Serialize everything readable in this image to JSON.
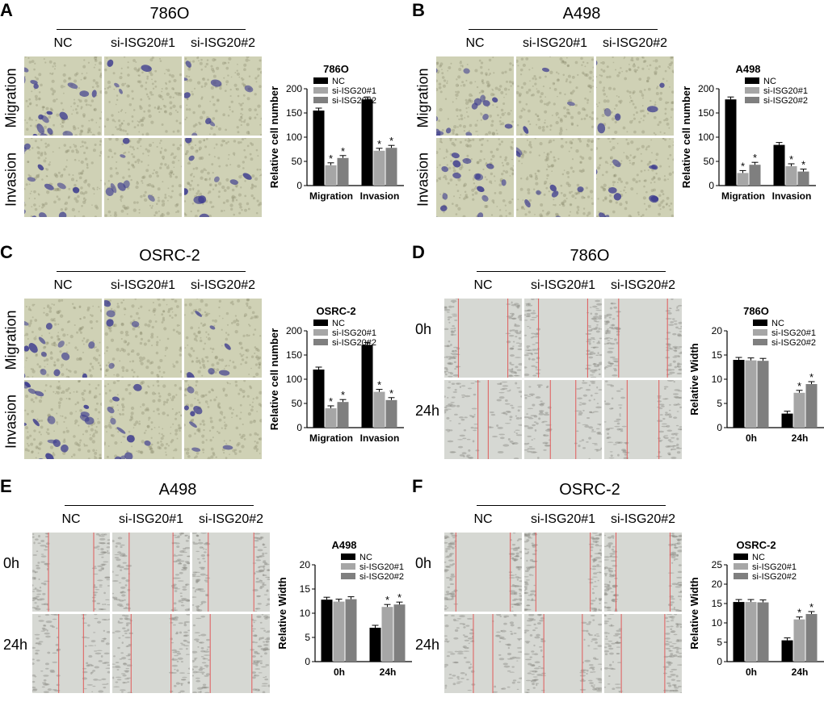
{
  "colors": {
    "nc": "#000000",
    "si1": "#a6a6a6",
    "si2": "#7f7f7f",
    "stain_bg": "#cfd1b5",
    "stain_cell": "#3e3d8f",
    "scratch_bg": "#d6d8d3",
    "scratch_line": "#e05a5a"
  },
  "columns": [
    "NC",
    "si-ISG20#1",
    "si-ISG20#2"
  ],
  "panels": [
    {
      "letter": "A",
      "cell_line": "786O",
      "kind": "transwell",
      "rows": [
        "Migration",
        "Invasion"
      ],
      "chart_data": {
        "type": "bar",
        "title": "786O",
        "ylabel": "Relative cell number",
        "xlabel": "",
        "categories": [
          "Migration",
          "Invasion"
        ],
        "ylim": [
          0,
          200
        ],
        "yticks": [
          0,
          50,
          100,
          150,
          200
        ],
        "series": [
          {
            "name": "NC",
            "values": [
              155,
              178
            ]
          },
          {
            "name": "si-ISG20#1",
            "values": [
              42,
              72
            ]
          },
          {
            "name": "si-ISG20#2",
            "values": [
              57,
              78
            ]
          }
        ],
        "significance": [
          [
            false,
            true,
            true
          ],
          [
            false,
            true,
            true
          ]
        ],
        "significance_mark": "*",
        "legend": "top-left"
      }
    },
    {
      "letter": "B",
      "cell_line": "A498",
      "kind": "transwell",
      "rows": [
        "Migration",
        "Invasion"
      ],
      "chart_data": {
        "type": "bar",
        "title": "A498",
        "ylabel": "Relative cell number",
        "xlabel": "",
        "categories": [
          "Migration",
          "Invasion"
        ],
        "ylim": [
          0,
          200
        ],
        "yticks": [
          0,
          50,
          100,
          150,
          200
        ],
        "series": [
          {
            "name": "NC",
            "values": [
              178,
              84
            ]
          },
          {
            "name": "si-ISG20#1",
            "values": [
              26,
              40
            ]
          },
          {
            "name": "si-ISG20#2",
            "values": [
              43,
              29
            ]
          }
        ],
        "significance": [
          [
            false,
            true,
            true
          ],
          [
            false,
            true,
            true
          ]
        ],
        "significance_mark": "*",
        "legend": "top-right"
      }
    },
    {
      "letter": "C",
      "cell_line": "OSRC-2",
      "kind": "transwell",
      "rows": [
        "Migration",
        "Invasion"
      ],
      "chart_data": {
        "type": "bar",
        "title": "OSRC-2",
        "ylabel": "Relative cell number",
        "xlabel": "",
        "categories": [
          "Migration",
          "Invasion"
        ],
        "ylim": [
          0,
          200
        ],
        "yticks": [
          0,
          50,
          100,
          150,
          200
        ],
        "series": [
          {
            "name": "NC",
            "values": [
              120,
              171
            ]
          },
          {
            "name": "si-ISG20#1",
            "values": [
              40,
              74
            ]
          },
          {
            "name": "si-ISG20#2",
            "values": [
              53,
              57
            ]
          }
        ],
        "significance": [
          [
            false,
            true,
            true
          ],
          [
            false,
            true,
            true
          ]
        ],
        "significance_mark": "*",
        "legend": "top-left"
      }
    },
    {
      "letter": "D",
      "cell_line": "786O",
      "kind": "wound",
      "rows": [
        "0h",
        "24h"
      ],
      "chart_data": {
        "type": "bar",
        "title": "786O",
        "ylabel": "Relative Width",
        "xlabel": "",
        "categories": [
          "0h",
          "24h"
        ],
        "ylim": [
          0,
          20
        ],
        "yticks": [
          0,
          5,
          10,
          15,
          20
        ],
        "series": [
          {
            "name": "NC",
            "values": [
              14,
              2.9
            ]
          },
          {
            "name": "si-ISG20#1",
            "values": [
              13.9,
              7.2
            ]
          },
          {
            "name": "si-ISG20#2",
            "values": [
              13.8,
              9.0
            ]
          }
        ],
        "significance": [
          [
            false,
            false,
            false
          ],
          [
            false,
            true,
            true
          ]
        ],
        "significance_mark": "*",
        "legend": "top-right"
      }
    },
    {
      "letter": "E",
      "cell_line": "A498",
      "kind": "wound",
      "rows": [
        "0h",
        "24h"
      ],
      "chart_data": {
        "type": "bar",
        "title": "A498",
        "ylabel": "Relative Width",
        "xlabel": "",
        "categories": [
          "0h",
          "24h"
        ],
        "ylim": [
          0,
          20
        ],
        "yticks": [
          0,
          5,
          10,
          15,
          20
        ],
        "series": [
          {
            "name": "NC",
            "values": [
              12.8,
              7.0
            ]
          },
          {
            "name": "si-ISG20#1",
            "values": [
              12.4,
              11.3
            ]
          },
          {
            "name": "si-ISG20#2",
            "values": [
              12.9,
              11.8
            ]
          }
        ],
        "significance": [
          [
            false,
            false,
            false
          ],
          [
            false,
            true,
            true
          ]
        ],
        "significance_mark": "*",
        "legend": "top-right"
      }
    },
    {
      "letter": "F",
      "cell_line": "OSRC-2",
      "kind": "wound",
      "rows": [
        "0h",
        "24h"
      ],
      "chart_data": {
        "type": "bar",
        "title": "OSRC-2",
        "ylabel": "Relative Width",
        "xlabel": "",
        "categories": [
          "0h",
          "24h"
        ],
        "ylim": [
          0,
          25
        ],
        "yticks": [
          0,
          5,
          10,
          15,
          20,
          25
        ],
        "series": [
          {
            "name": "NC",
            "values": [
              15.4,
              5.5
            ]
          },
          {
            "name": "si-ISG20#1",
            "values": [
              15.4,
              10.9
            ]
          },
          {
            "name": "si-ISG20#2",
            "values": [
              15.3,
              12.3
            ]
          }
        ],
        "significance": [
          [
            false,
            false,
            false
          ],
          [
            false,
            true,
            true
          ]
        ],
        "significance_mark": "*",
        "legend": "top-left"
      }
    }
  ]
}
